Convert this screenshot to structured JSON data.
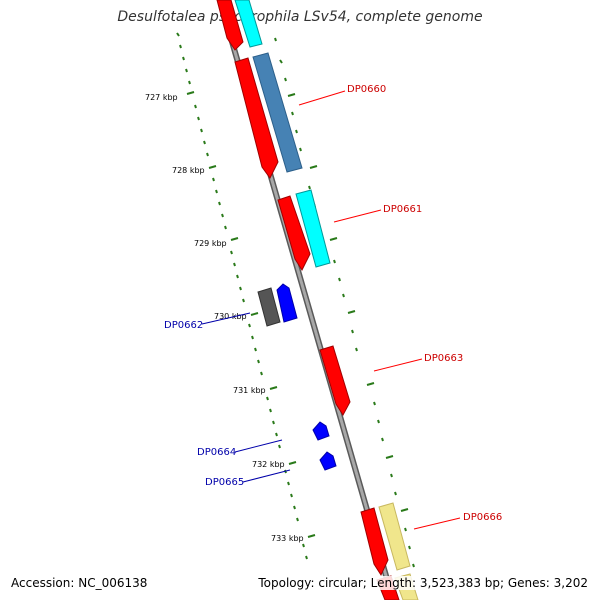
{
  "title": "Desulfotalea psychrophila LSv54, complete genome",
  "footer": {
    "accession": "Accession: NC_006138",
    "stats": "Topology: circular; Length: 3,523,383 bp; Genes: 3,202"
  },
  "colors": {
    "backbone": "#888888",
    "tick": "#2a7a1a",
    "forward_cds": "#ff0000",
    "reverse_cds": "#0000ff",
    "trna": "#00ffff",
    "blast_steel": "#4682b4",
    "blast_cyan": "#00ffff",
    "blast_yellow": "#f0e68c",
    "gray_feature": "#555555",
    "label_red": "#cc0000",
    "label_blue": "#0000aa"
  },
  "scale_labels": [
    "727 kbp",
    "728 kbp",
    "729 kbp",
    "730 kbp",
    "731 kbp",
    "732 kbp",
    "733 kbp"
  ],
  "gene_labels": [
    {
      "id": "dp0660",
      "text": "DP0660",
      "color": "red"
    },
    {
      "id": "dp0661",
      "text": "DP0661",
      "color": "red"
    },
    {
      "id": "dp0662",
      "text": "DP0662",
      "color": "blue"
    },
    {
      "id": "dp0663",
      "text": "DP0663",
      "color": "red"
    },
    {
      "id": "dp0664",
      "text": "DP0664",
      "color": "blue"
    },
    {
      "id": "dp0665",
      "text": "DP0665",
      "color": "blue"
    },
    {
      "id": "dp0666",
      "text": "DP0666",
      "color": "red"
    }
  ]
}
